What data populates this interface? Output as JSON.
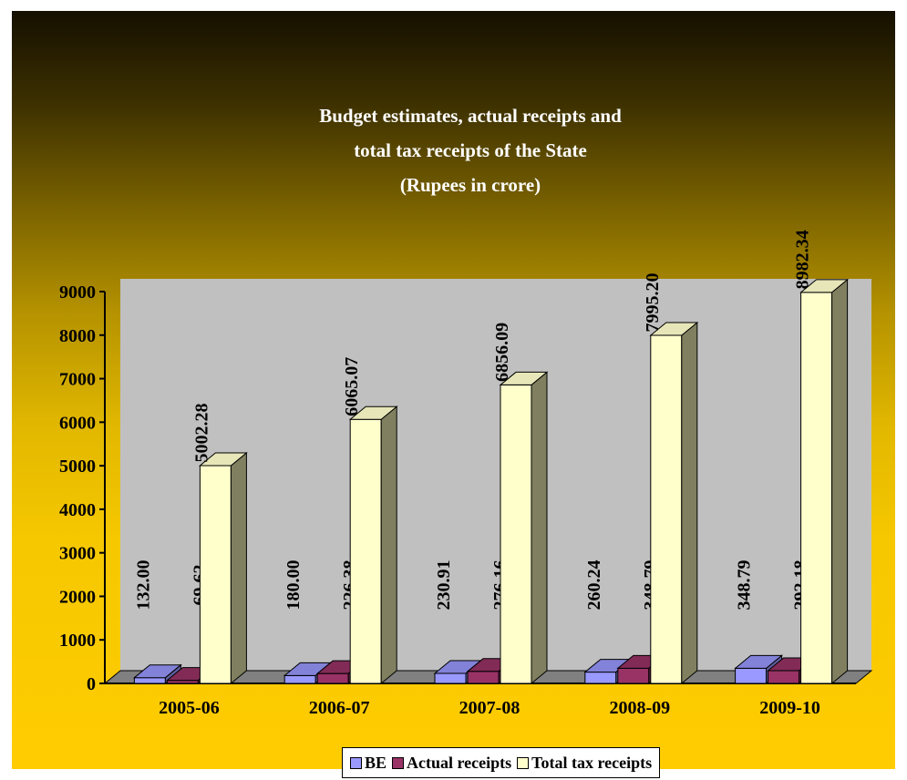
{
  "chart_data": {
    "type": "bar",
    "title_lines": [
      "Budget estimates, actual receipts and",
      "total tax receipts of the State",
      "(Rupees in crore)"
    ],
    "categories": [
      "2005-06",
      "2006-07",
      "2007-08",
      "2008-09",
      "2009-10"
    ],
    "series": [
      {
        "name": "BE",
        "values": [
          132.0,
          180.0,
          230.91,
          260.24,
          348.79
        ],
        "labels": [
          "132.00",
          "180.00",
          "230.91",
          "260.24",
          "348.79"
        ],
        "color": "#9999ff"
      },
      {
        "name": "Actual receipts",
        "values": [
          69.62,
          226.38,
          276.16,
          348.79,
          292.18
        ],
        "labels": [
          "69.62",
          "226.38",
          "276.16",
          "348.79",
          "292.18"
        ],
        "color": "#993366"
      },
      {
        "name": "Total tax receipts",
        "values": [
          5002.28,
          6065.07,
          6856.09,
          7995.2,
          8982.34
        ],
        "labels": [
          "5002.28",
          "6065.07",
          "6856.09",
          "7995.20",
          "8982.34"
        ],
        "color": "#ffffcc"
      }
    ],
    "yticks": [
      0,
      1000,
      2000,
      3000,
      4000,
      5000,
      6000,
      7000,
      8000,
      9000
    ],
    "ylim": [
      0,
      9000
    ],
    "grid": false,
    "legend_position": "bottom",
    "plot_area_color": "#c0c0c0",
    "floor_color": "#808080"
  }
}
